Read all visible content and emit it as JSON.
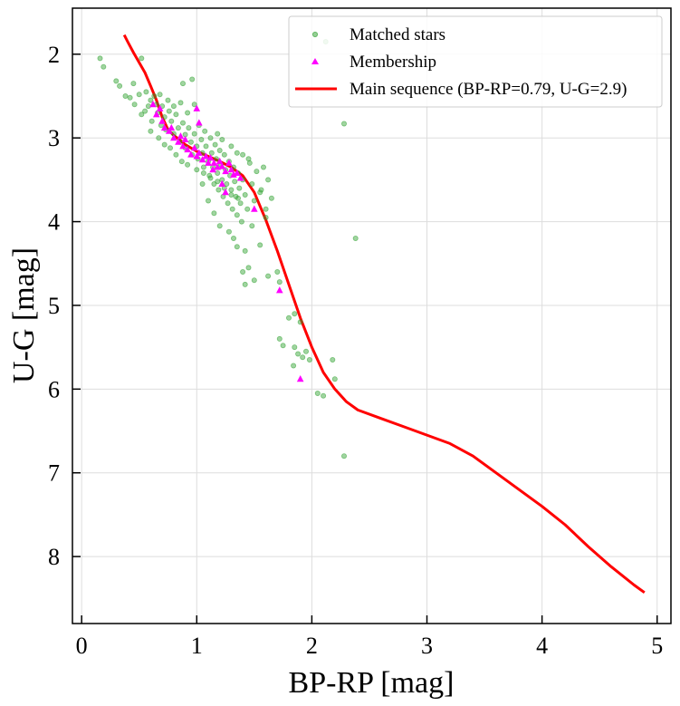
{
  "chart_data": {
    "type": "scatter",
    "xlabel": "BP-RP [mag]",
    "ylabel": "U-G [mag]",
    "xlim": [
      -0.08,
      5.12
    ],
    "ylim": [
      8.8,
      1.45
    ],
    "y_inverted": true,
    "grid": true,
    "legend_position": "top-right",
    "x_ticks": [
      "0",
      "1",
      "2",
      "3",
      "4",
      "5"
    ],
    "y_ticks": [
      "2",
      "3",
      "4",
      "5",
      "6",
      "7",
      "8"
    ],
    "colors": {
      "matched": "#2ca02c",
      "membership": "#ff00ff",
      "main_sequence": "#ff0000"
    },
    "series": [
      {
        "name": "Matched stars",
        "kind": "scatter",
        "marker": "circle",
        "points": [
          [
            0.16,
            2.05
          ],
          [
            0.19,
            2.15
          ],
          [
            0.3,
            2.32
          ],
          [
            0.33,
            2.38
          ],
          [
            0.42,
            2.52
          ],
          [
            0.46,
            2.6
          ],
          [
            0.5,
            2.48
          ],
          [
            0.52,
            2.72
          ],
          [
            0.56,
            2.45
          ],
          [
            0.58,
            2.62
          ],
          [
            0.6,
            2.55
          ],
          [
            0.61,
            2.8
          ],
          [
            0.63,
            2.5
          ],
          [
            0.65,
            2.6
          ],
          [
            0.66,
            2.7
          ],
          [
            0.68,
            2.48
          ],
          [
            0.69,
            2.85
          ],
          [
            0.7,
            2.62
          ],
          [
            0.72,
            2.75
          ],
          [
            0.73,
            2.9
          ],
          [
            0.75,
            2.55
          ],
          [
            0.76,
            2.68
          ],
          [
            0.78,
            2.8
          ],
          [
            0.8,
            2.95
          ],
          [
            0.8,
            2.62
          ],
          [
            0.82,
            2.72
          ],
          [
            0.84,
            2.88
          ],
          [
            0.85,
            3.05
          ],
          [
            0.86,
            2.58
          ],
          [
            0.88,
            2.82
          ],
          [
            0.9,
            2.96
          ],
          [
            0.9,
            3.12
          ],
          [
            0.92,
            2.7
          ],
          [
            0.93,
            2.88
          ],
          [
            0.95,
            3.05
          ],
          [
            0.96,
            3.2
          ],
          [
            0.98,
            2.6
          ],
          [
            0.98,
            2.95
          ],
          [
            1.0,
            3.1
          ],
          [
            1.01,
            3.25
          ],
          [
            1.02,
            2.85
          ],
          [
            1.04,
            3.02
          ],
          [
            1.05,
            3.18
          ],
          [
            1.06,
            3.35
          ],
          [
            1.07,
            2.92
          ],
          [
            1.08,
            3.1
          ],
          [
            1.1,
            3.28
          ],
          [
            1.11,
            3.45
          ],
          [
            1.12,
            3.0
          ],
          [
            1.13,
            3.18
          ],
          [
            1.14,
            3.35
          ],
          [
            1.15,
            3.55
          ],
          [
            1.16,
            3.08
          ],
          [
            1.17,
            3.25
          ],
          [
            1.18,
            3.42
          ],
          [
            1.19,
            3.62
          ],
          [
            1.2,
            3.15
          ],
          [
            1.21,
            3.32
          ],
          [
            1.22,
            3.5
          ],
          [
            1.23,
            3.7
          ],
          [
            1.24,
            3.2
          ],
          [
            1.25,
            3.38
          ],
          [
            1.26,
            3.55
          ],
          [
            1.27,
            3.78
          ],
          [
            1.28,
            3.28
          ],
          [
            1.29,
            3.45
          ],
          [
            1.3,
            3.62
          ],
          [
            1.31,
            3.85
          ],
          [
            1.32,
            3.35
          ],
          [
            1.33,
            3.52
          ],
          [
            1.34,
            3.7
          ],
          [
            1.35,
            3.92
          ],
          [
            1.36,
            3.42
          ],
          [
            1.37,
            3.6
          ],
          [
            1.38,
            3.78
          ],
          [
            1.39,
            4.0
          ],
          [
            1.4,
            3.5
          ],
          [
            1.42,
            3.68
          ],
          [
            1.44,
            3.85
          ],
          [
            1.46,
            3.3
          ],
          [
            1.48,
            3.55
          ],
          [
            1.5,
            3.75
          ],
          [
            1.52,
            3.4
          ],
          [
            1.55,
            3.65
          ],
          [
            1.58,
            3.35
          ],
          [
            1.6,
            3.85
          ],
          [
            1.62,
            3.5
          ],
          [
            1.65,
            3.72
          ],
          [
            1.05,
            3.55
          ],
          [
            1.1,
            3.75
          ],
          [
            1.15,
            3.9
          ],
          [
            1.2,
            4.05
          ],
          [
            1.28,
            4.12
          ],
          [
            1.32,
            4.2
          ],
          [
            1.35,
            4.3
          ],
          [
            1.42,
            4.35
          ],
          [
            1.45,
            4.55
          ],
          [
            1.4,
            4.6
          ],
          [
            1.5,
            4.7
          ],
          [
            1.42,
            4.75
          ],
          [
            1.55,
            4.28
          ],
          [
            1.62,
            4.65
          ],
          [
            1.7,
            4.6
          ],
          [
            1.72,
            4.72
          ],
          [
            1.8,
            5.15
          ],
          [
            1.85,
            5.1
          ],
          [
            1.9,
            5.2
          ],
          [
            1.72,
            5.4
          ],
          [
            1.75,
            5.48
          ],
          [
            1.85,
            5.5
          ],
          [
            1.88,
            5.58
          ],
          [
            1.92,
            5.62
          ],
          [
            1.95,
            5.55
          ],
          [
            1.98,
            5.65
          ],
          [
            1.84,
            5.72
          ],
          [
            2.05,
            6.05
          ],
          [
            2.1,
            6.08
          ],
          [
            2.18,
            5.65
          ],
          [
            2.2,
            5.88
          ],
          [
            2.28,
            6.8
          ],
          [
            2.38,
            4.2
          ],
          [
            2.28,
            2.83
          ],
          [
            2.12,
            1.85
          ],
          [
            0.52,
            2.05
          ],
          [
            0.45,
            2.35
          ],
          [
            0.38,
            2.5
          ],
          [
            0.88,
            2.35
          ],
          [
            0.96,
            2.3
          ],
          [
            0.55,
            2.68
          ],
          [
            0.6,
            2.92
          ],
          [
            0.67,
            3.0
          ],
          [
            0.72,
            3.08
          ],
          [
            0.77,
            3.12
          ],
          [
            0.82,
            3.2
          ],
          [
            0.87,
            3.28
          ],
          [
            0.92,
            3.32
          ],
          [
            1.0,
            3.38
          ],
          [
            1.06,
            3.42
          ],
          [
            1.12,
            3.48
          ],
          [
            1.18,
            3.52
          ],
          [
            1.24,
            3.6
          ],
          [
            1.3,
            3.68
          ],
          [
            1.36,
            3.72
          ],
          [
            1.18,
            2.95
          ],
          [
            1.22,
            3.02
          ],
          [
            1.3,
            3.1
          ],
          [
            1.35,
            3.18
          ],
          [
            1.4,
            3.2
          ],
          [
            1.45,
            3.25
          ],
          [
            1.56,
            3.62
          ],
          [
            1.6,
            3.95
          ],
          [
            1.48,
            4.05
          ]
        ]
      },
      {
        "name": "Membership",
        "kind": "scatter",
        "marker": "triangle",
        "points": [
          [
            0.62,
            2.6
          ],
          [
            0.65,
            2.72
          ],
          [
            0.68,
            2.65
          ],
          [
            0.7,
            2.8
          ],
          [
            0.72,
            2.88
          ],
          [
            0.76,
            2.92
          ],
          [
            0.8,
            3.0
          ],
          [
            0.84,
            3.05
          ],
          [
            0.88,
            3.1
          ],
          [
            0.9,
            3.02
          ],
          [
            0.92,
            3.14
          ],
          [
            0.95,
            3.2
          ],
          [
            0.98,
            3.12
          ],
          [
            1.0,
            3.22
          ],
          [
            1.02,
            3.18
          ],
          [
            1.05,
            3.26
          ],
          [
            1.08,
            3.22
          ],
          [
            1.1,
            3.3
          ],
          [
            1.12,
            3.24
          ],
          [
            1.15,
            3.3
          ],
          [
            1.18,
            3.35
          ],
          [
            1.2,
            3.28
          ],
          [
            1.22,
            3.34
          ],
          [
            1.25,
            3.4
          ],
          [
            1.28,
            3.3
          ],
          [
            1.3,
            3.38
          ],
          [
            1.32,
            3.44
          ],
          [
            1.35,
            3.42
          ],
          [
            1.0,
            2.65
          ],
          [
            1.02,
            2.82
          ],
          [
            1.22,
            3.55
          ],
          [
            1.25,
            3.65
          ],
          [
            1.5,
            3.85
          ],
          [
            1.72,
            4.82
          ],
          [
            1.9,
            5.88
          ],
          [
            0.78,
            2.88
          ],
          [
            0.86,
            2.98
          ],
          [
            1.14,
            3.38
          ],
          [
            1.38,
            3.48
          ]
        ]
      },
      {
        "name": "Main sequence (BP-RP=0.79, U-G=2.9)",
        "kind": "line",
        "points": [
          [
            0.37,
            1.77
          ],
          [
            0.4,
            1.85
          ],
          [
            0.45,
            1.98
          ],
          [
            0.5,
            2.1
          ],
          [
            0.55,
            2.22
          ],
          [
            0.6,
            2.38
          ],
          [
            0.65,
            2.55
          ],
          [
            0.7,
            2.75
          ],
          [
            0.75,
            2.9
          ],
          [
            0.8,
            2.97
          ],
          [
            0.85,
            3.02
          ],
          [
            0.9,
            3.08
          ],
          [
            1.0,
            3.16
          ],
          [
            1.1,
            3.22
          ],
          [
            1.2,
            3.28
          ],
          [
            1.3,
            3.35
          ],
          [
            1.4,
            3.45
          ],
          [
            1.5,
            3.65
          ],
          [
            1.6,
            3.98
          ],
          [
            1.7,
            4.35
          ],
          [
            1.8,
            4.75
          ],
          [
            1.9,
            5.15
          ],
          [
            2.0,
            5.5
          ],
          [
            2.1,
            5.8
          ],
          [
            2.2,
            6.0
          ],
          [
            2.3,
            6.15
          ],
          [
            2.4,
            6.25
          ],
          [
            2.6,
            6.35
          ],
          [
            2.8,
            6.45
          ],
          [
            3.0,
            6.55
          ],
          [
            3.2,
            6.65
          ],
          [
            3.4,
            6.8
          ],
          [
            3.6,
            7.0
          ],
          [
            3.8,
            7.2
          ],
          [
            4.0,
            7.4
          ],
          [
            4.2,
            7.62
          ],
          [
            4.4,
            7.88
          ],
          [
            4.6,
            8.12
          ],
          [
            4.8,
            8.34
          ],
          [
            4.89,
            8.43
          ]
        ]
      }
    ]
  }
}
